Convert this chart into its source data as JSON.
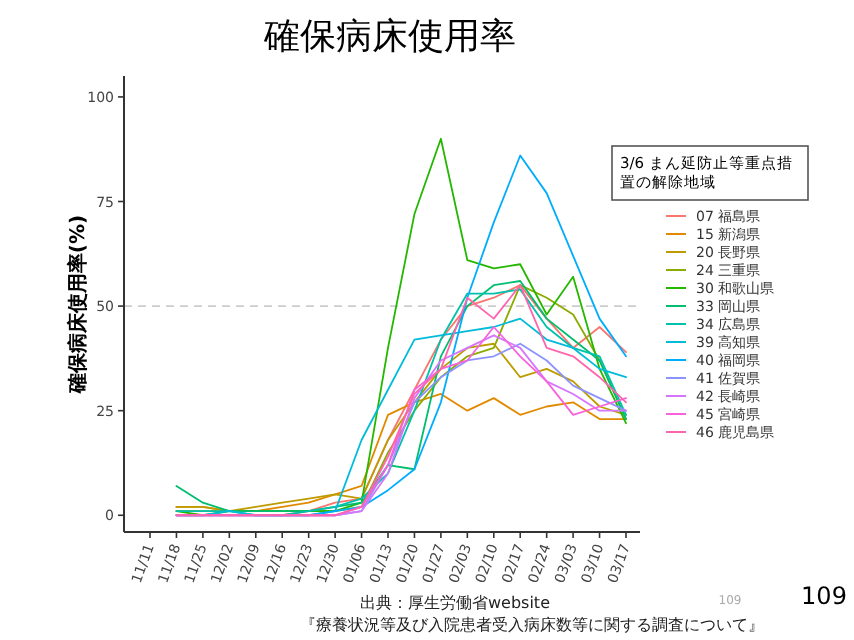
{
  "chart_data": {
    "type": "line",
    "title": "確保病床使用率",
    "ylabel": "確保病床使用率(%)",
    "legend_title": "3/6 まん延防止等重点措置の解除地域",
    "legend": "right",
    "grid": false,
    "categories": [
      "11/11",
      "11/18",
      "11/25",
      "12/02",
      "12/09",
      "12/16",
      "12/23",
      "12/30",
      "01/06",
      "01/13",
      "01/20",
      "01/27",
      "02/03",
      "02/10",
      "02/17",
      "02/24",
      "03/03",
      "03/10",
      "03/17"
    ],
    "ylim": [
      -4,
      105
    ],
    "yticks": [
      0,
      25,
      50,
      75,
      100
    ],
    "ref_lines": [
      {
        "axis": "y",
        "value": 50,
        "color": "#cccccc",
        "line_style": "dashed"
      }
    ],
    "series": [
      {
        "name": "07 福島県",
        "color": "#F8766D",
        "values": [
          null,
          null,
          null,
          null,
          null,
          0,
          1,
          3,
          4,
          18,
          30,
          42,
          50,
          52,
          55,
          47,
          40,
          45,
          39
        ]
      },
      {
        "name": "15 新潟県",
        "color": "#E18A00",
        "values": [
          null,
          2,
          2,
          1,
          1,
          2,
          3,
          5,
          7,
          24,
          27,
          29,
          25,
          28,
          24,
          26,
          27,
          23,
          23
        ]
      },
      {
        "name": "20 長野県",
        "color": "#BE9C00",
        "values": [
          null,
          2,
          2,
          1,
          2,
          3,
          4,
          5,
          4,
          18,
          27,
          35,
          40,
          41,
          33,
          35,
          32,
          26,
          24
        ]
      },
      {
        "name": "24 三重県",
        "color": "#8CAB00",
        "values": [
          null,
          1,
          1,
          1,
          1,
          1,
          1,
          1,
          2,
          15,
          25,
          33,
          38,
          40,
          55,
          52,
          48,
          37,
          23
        ]
      },
      {
        "name": "30 和歌山県",
        "color": "#24B700",
        "values": [
          null,
          1,
          0,
          1,
          1,
          1,
          1,
          1,
          3,
          40,
          72,
          90,
          61,
          59,
          60,
          48,
          57,
          35,
          22
        ]
      },
      {
        "name": "33 岡山県",
        "color": "#00BE70",
        "values": [
          null,
          7,
          3,
          1,
          1,
          1,
          1,
          2,
          3,
          12,
          11,
          38,
          50,
          55,
          56,
          47,
          42,
          37,
          23
        ]
      },
      {
        "name": "34 広島県",
        "color": "#00C1AB",
        "values": [
          null,
          1,
          1,
          1,
          0,
          0,
          1,
          2,
          4,
          10,
          25,
          42,
          53,
          53,
          54,
          45,
          40,
          38,
          24
        ]
      },
      {
        "name": "39 高知県",
        "color": "#00BBDA",
        "values": [
          null,
          0,
          0,
          1,
          0,
          0,
          0,
          1,
          18,
          30,
          42,
          43,
          44,
          45,
          47,
          42,
          40,
          35,
          33
        ]
      },
      {
        "name": "40 福岡県",
        "color": "#00ACFC",
        "values": [
          null,
          0,
          0,
          0,
          0,
          0,
          0,
          1,
          2,
          6,
          11,
          27,
          52,
          70,
          86,
          77,
          62,
          47,
          38
        ]
      },
      {
        "name": "41 佐賀県",
        "color": "#8B93FF",
        "values": [
          null,
          null,
          null,
          null,
          null,
          null,
          0,
          0,
          1,
          12,
          27,
          33,
          37,
          38,
          41,
          37,
          31,
          28,
          25
        ]
      },
      {
        "name": "42 長崎県",
        "color": "#D575FE",
        "values": [
          null,
          0,
          0,
          0,
          0,
          0,
          0,
          0,
          1,
          10,
          28,
          37,
          40,
          43,
          40,
          32,
          29,
          25,
          25
        ]
      },
      {
        "name": "45 宮崎県",
        "color": "#F962DD",
        "values": [
          null,
          0,
          0,
          0,
          0,
          0,
          0,
          0,
          2,
          12,
          30,
          35,
          37,
          45,
          38,
          32,
          24,
          26,
          28
        ]
      },
      {
        "name": "46 鹿児島県",
        "color": "#FF65AC",
        "values": [
          null,
          0,
          0,
          0,
          0,
          0,
          0,
          0,
          2,
          14,
          29,
          35,
          52,
          47,
          55,
          40,
          38,
          33,
          27
        ]
      }
    ],
    "annotations": [
      "出典：厚生労働省website",
      "『療養状況等及び入院患者受入病床数等に関する調査について』",
      "109",
      "109"
    ]
  }
}
